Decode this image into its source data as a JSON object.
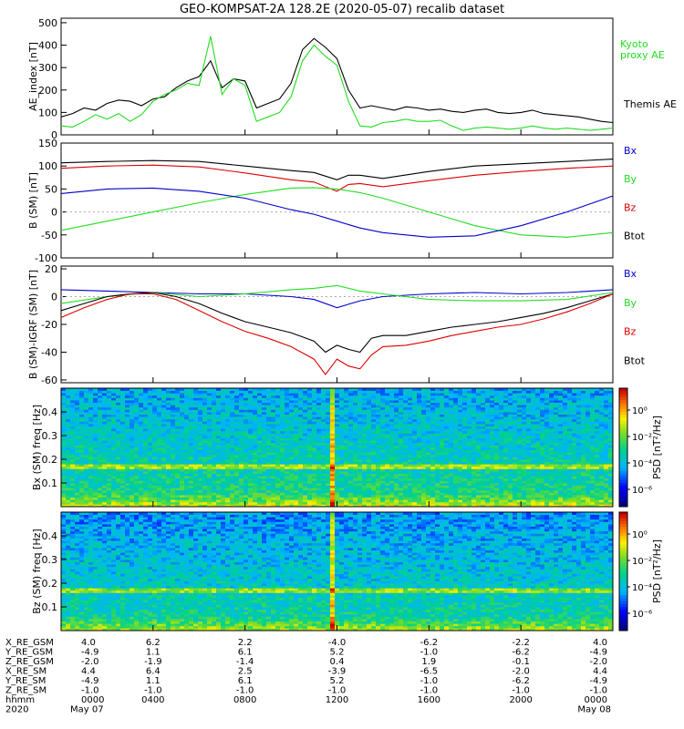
{
  "title": "GEO-KOMPSAT-2A 128.2E (2020-05-07) recalib dataset",
  "colors": {
    "black": "#000000",
    "green": "#22dd22",
    "blue": "#0000cc",
    "red": "#dd0000"
  },
  "chart_data": [
    {
      "type": "line",
      "ylabel": "AE_index [nT]",
      "yticks": [
        "0",
        "100",
        "200",
        "300",
        "400",
        "500"
      ],
      "ylim": [
        0,
        520
      ],
      "xlim": [
        0,
        24
      ],
      "legend": [
        "Kyoto proxy AE",
        "Themis AE"
      ],
      "series": [
        {
          "name": "Themis AE",
          "color": "#000000",
          "x": [
            0,
            0.5,
            1,
            1.5,
            2,
            2.5,
            3,
            3.5,
            4,
            4.5,
            5,
            5.5,
            6,
            6.5,
            7,
            7.5,
            8,
            8.5,
            9,
            9.5,
            10,
            10.5,
            11,
            11.5,
            12,
            12.5,
            13,
            13.5,
            14,
            14.5,
            15,
            15.5,
            16,
            16.5,
            17,
            17.5,
            18,
            18.5,
            19,
            19.5,
            20,
            20.5,
            21,
            21.5,
            22,
            22.5,
            23,
            23.5,
            24
          ],
          "values": [
            80,
            95,
            120,
            110,
            140,
            155,
            150,
            130,
            160,
            170,
            210,
            240,
            260,
            330,
            210,
            250,
            240,
            120,
            140,
            160,
            230,
            380,
            430,
            390,
            340,
            200,
            120,
            130,
            120,
            110,
            125,
            120,
            110,
            115,
            105,
            100,
            110,
            115,
            100,
            95,
            100,
            110,
            95,
            90,
            85,
            80,
            70,
            60,
            55
          ]
        },
        {
          "name": "Kyoto proxy AE",
          "color": "#22dd22",
          "x": [
            0,
            0.5,
            1,
            1.5,
            2,
            2.5,
            3,
            3.5,
            4,
            4.5,
            5,
            5.5,
            6,
            6.5,
            7,
            7.5,
            8,
            8.5,
            9,
            9.5,
            10,
            10.5,
            11,
            11.5,
            12,
            12.5,
            13,
            13.5,
            14,
            14.5,
            15,
            15.5,
            16,
            16.5,
            17,
            17.5,
            18,
            18.5,
            19,
            19.5,
            20,
            20.5,
            21,
            21.5,
            22,
            22.5,
            23,
            23.5,
            24
          ],
          "values": [
            40,
            35,
            60,
            90,
            70,
            95,
            60,
            90,
            150,
            180,
            200,
            230,
            220,
            440,
            180,
            250,
            220,
            60,
            80,
            100,
            170,
            330,
            400,
            350,
            310,
            150,
            40,
            35,
            55,
            60,
            70,
            60,
            60,
            65,
            40,
            20,
            30,
            35,
            30,
            25,
            30,
            40,
            30,
            25,
            30,
            25,
            20,
            25,
            30
          ]
        }
      ]
    },
    {
      "type": "line",
      "ylabel": "B (SM) [nT]",
      "yticks": [
        "-100",
        "-50",
        "0",
        "50",
        "100",
        "150"
      ],
      "ylim": [
        -100,
        150
      ],
      "xlim": [
        0,
        24
      ],
      "legend": [
        "Bx",
        "By",
        "Bz",
        "Btot"
      ],
      "series": [
        {
          "name": "Btot",
          "color": "#000000",
          "x": [
            0,
            2,
            4,
            6,
            8,
            10,
            11,
            11.5,
            12,
            12.5,
            13,
            14,
            16,
            18,
            20,
            22,
            24
          ],
          "values": [
            107,
            110,
            112,
            110,
            100,
            90,
            86,
            78,
            70,
            80,
            80,
            73,
            88,
            100,
            105,
            110,
            115
          ]
        },
        {
          "name": "Bz",
          "color": "#dd0000",
          "x": [
            0,
            2,
            4,
            6,
            8,
            10,
            11,
            11.5,
            12,
            12.5,
            13,
            14,
            16,
            18,
            20,
            22,
            24
          ],
          "values": [
            95,
            100,
            102,
            98,
            85,
            70,
            65,
            55,
            45,
            60,
            62,
            55,
            68,
            80,
            88,
            95,
            100
          ]
        },
        {
          "name": "By",
          "color": "#22dd22",
          "x": [
            0,
            2,
            4,
            6,
            8,
            10,
            11,
            12,
            13,
            14,
            16,
            18,
            20,
            22,
            24
          ],
          "values": [
            -40,
            -20,
            0,
            20,
            38,
            52,
            53,
            50,
            42,
            30,
            0,
            -30,
            -50,
            -55,
            -45
          ]
        },
        {
          "name": "Bx",
          "color": "#0000cc",
          "x": [
            0,
            2,
            4,
            6,
            8,
            10,
            11,
            12,
            13,
            14,
            16,
            18,
            20,
            22,
            24
          ],
          "values": [
            40,
            50,
            52,
            45,
            30,
            5,
            -5,
            -20,
            -35,
            -45,
            -55,
            -52,
            -30,
            0,
            35
          ]
        }
      ]
    },
    {
      "type": "line",
      "ylabel": "B (SM)-IGRF (SM) [nT]",
      "yticks": [
        "-60",
        "-40",
        "-20",
        "0",
        "20"
      ],
      "ylim": [
        -62,
        22
      ],
      "xlim": [
        0,
        24
      ],
      "legend": [
        "Bx",
        "By",
        "Bz",
        "Btot"
      ],
      "series": [
        {
          "name": "Bx",
          "color": "#0000cc",
          "x": [
            0,
            2,
            4,
            6,
            8,
            10,
            11,
            12,
            13,
            14,
            16,
            18,
            20,
            22,
            24
          ],
          "values": [
            5,
            4,
            3,
            2,
            2,
            0,
            -2,
            -8,
            -3,
            0,
            2,
            3,
            2,
            3,
            5
          ]
        },
        {
          "name": "By",
          "color": "#22dd22",
          "x": [
            0,
            2,
            4,
            6,
            8,
            10,
            11,
            12,
            13,
            14,
            16,
            18,
            20,
            22,
            24
          ],
          "values": [
            -5,
            0,
            3,
            0,
            2,
            5,
            6,
            8,
            4,
            2,
            -2,
            -3,
            -3,
            -2,
            3
          ]
        },
        {
          "name": "Btot",
          "color": "#000000",
          "x": [
            0,
            1,
            2,
            3,
            4,
            5,
            6,
            7,
            8,
            9,
            10,
            11,
            11.5,
            12,
            12.5,
            13,
            13.5,
            14,
            15,
            16,
            17,
            18,
            19,
            20,
            21,
            22,
            23,
            24
          ],
          "values": [
            -10,
            -5,
            0,
            2,
            3,
            0,
            -5,
            -12,
            -18,
            -22,
            -26,
            -32,
            -40,
            -35,
            -38,
            -40,
            -30,
            -28,
            -28,
            -25,
            -22,
            -20,
            -18,
            -15,
            -12,
            -8,
            -3,
            2
          ]
        },
        {
          "name": "Bz",
          "color": "#dd0000",
          "x": [
            0,
            1,
            2,
            3,
            4,
            5,
            6,
            7,
            8,
            9,
            10,
            11,
            11.5,
            12,
            12.5,
            13,
            13.5,
            14,
            15,
            16,
            17,
            18,
            19,
            20,
            21,
            22,
            23,
            24
          ],
          "values": [
            -15,
            -8,
            -2,
            2,
            2,
            -2,
            -10,
            -18,
            -25,
            -30,
            -36,
            -45,
            -56,
            -45,
            -50,
            -52,
            -42,
            -36,
            -35,
            -32,
            -28,
            -25,
            -22,
            -20,
            -16,
            -11,
            -5,
            2
          ]
        }
      ]
    },
    {
      "type": "heatmap",
      "ylabel": "Bx (SM) freq [Hz]",
      "yticks": [
        "0.1",
        "0.2",
        "0.3",
        "0.4"
      ],
      "ylim": [
        0,
        0.5
      ],
      "colorbar": {
        "label": "PSD [nT²/Hz]",
        "ticks": [
          "10⁰",
          "10⁻²",
          "10⁻⁴",
          "10⁻⁶"
        ]
      },
      "features": {
        "horizontal_line_hz": 0.17,
        "vertical_line_hour": 11.7
      }
    },
    {
      "type": "heatmap",
      "ylabel": "Bz (SM) freq [Hz]",
      "yticks": [
        "0.1",
        "0.2",
        "0.3",
        "0.4"
      ],
      "ylim": [
        0,
        0.5
      ],
      "colorbar": {
        "label": "PSD [nT²/Hz]",
        "ticks": [
          "10⁰",
          "10⁻²",
          "10⁻⁴",
          "10⁻⁶"
        ]
      },
      "features": {
        "horizontal_line_hz": 0.17,
        "vertical_line_hour": 11.7
      }
    }
  ],
  "ephemeris": {
    "row_labels": [
      "X_RE_GSM",
      "Y_RE_GSM",
      "Z_RE_GSM",
      "X_RE_SM",
      "Y_RE_SM",
      "Z_RE_SM",
      "hhmm",
      "2020"
    ],
    "columns": [
      [
        "4.0",
        "-4.9",
        "-2.0",
        "4.4",
        "-4.9",
        "-1.0",
        "0000",
        "May 07"
      ],
      [
        "6.2",
        "1.1",
        "-1.9",
        "6.4",
        "1.1",
        "-1.0",
        "0400",
        ""
      ],
      [
        "2.2",
        "6.1",
        "-1.4",
        "2.5",
        "6.1",
        "-1.0",
        "0800",
        ""
      ],
      [
        "-4.0",
        "5.2",
        "0.4",
        "-3.9",
        "5.2",
        "-1.0",
        "1200",
        ""
      ],
      [
        "-6.2",
        "-1.0",
        "1.9",
        "-6.5",
        "-1.0",
        "-1.0",
        "1600",
        ""
      ],
      [
        "-2.2",
        "-6.2",
        "-0.1",
        "-2.0",
        "-6.2",
        "-1.0",
        "2000",
        ""
      ],
      [
        "4.0",
        "-4.9",
        "-2.0",
        "4.4",
        "-4.9",
        "-1.0",
        "0000",
        "May 08"
      ]
    ]
  }
}
